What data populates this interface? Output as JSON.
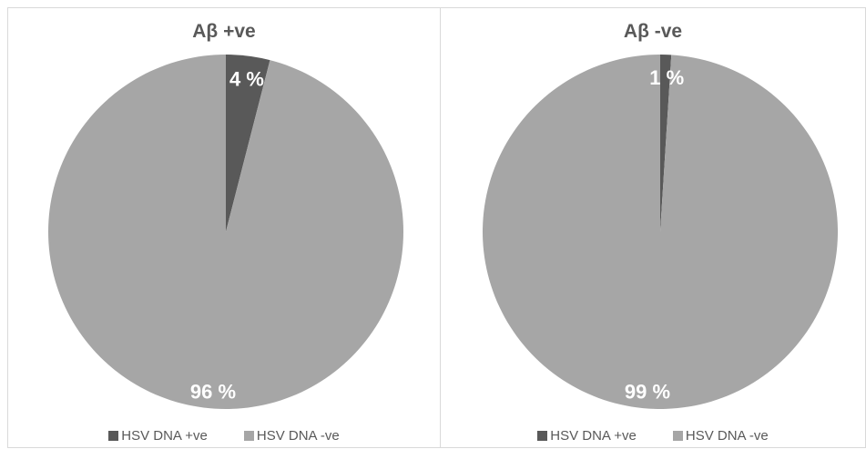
{
  "colors": {
    "positive": "#595959",
    "negative": "#a6a6a6",
    "label": "#ffffff"
  },
  "chart_data": [
    {
      "type": "pie",
      "title": "Aβ +ve",
      "slices": [
        {
          "name": "HSV DNA +ve",
          "value": 4,
          "label": "4 %",
          "color": "#595959"
        },
        {
          "name": "HSV DNA -ve",
          "value": 96,
          "label": "96 %",
          "color": "#a6a6a6"
        }
      ],
      "legend": {
        "position": "bottom",
        "entries": [
          "HSV DNA +ve",
          "HSV DNA -ve"
        ]
      }
    },
    {
      "type": "pie",
      "title": "Aβ -ve",
      "slices": [
        {
          "name": "HSV DNA +ve",
          "value": 1,
          "label": "1 %",
          "color": "#595959"
        },
        {
          "name": "HSV DNA -ve",
          "value": 99,
          "label": "99 %",
          "color": "#a6a6a6"
        }
      ],
      "legend": {
        "position": "bottom",
        "entries": [
          "HSV DNA +ve",
          "HSV DNA -ve"
        ]
      }
    }
  ]
}
